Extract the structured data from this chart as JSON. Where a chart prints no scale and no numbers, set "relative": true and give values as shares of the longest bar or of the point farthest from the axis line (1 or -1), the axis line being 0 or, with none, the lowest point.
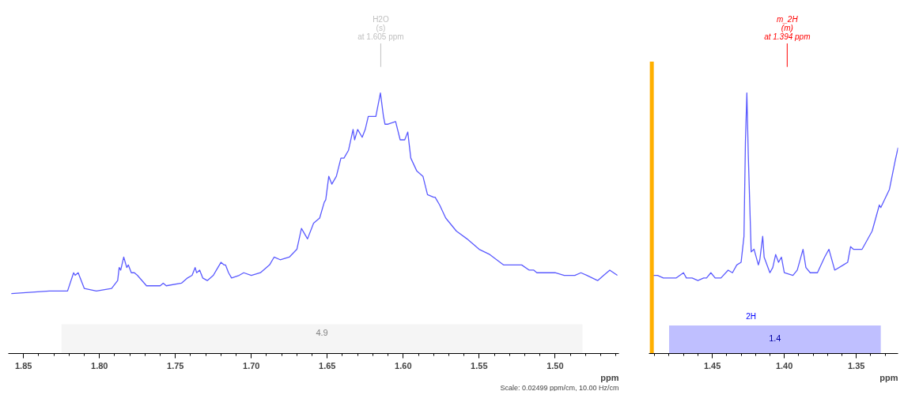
{
  "chart_data": [
    {
      "type": "line",
      "relative": true,
      "color": "#5a5aff",
      "xlabel": "ppm",
      "xlim": [
        1.86,
        1.458
      ],
      "xticks": [
        {
          "value": 1.85,
          "label": "1.85"
        },
        {
          "value": 1.8,
          "label": "1.80"
        },
        {
          "value": 1.75,
          "label": "1.75"
        },
        {
          "value": 1.7,
          "label": "1.70"
        },
        {
          "value": 1.65,
          "label": "1.65"
        },
        {
          "value": 1.6,
          "label": "1.60"
        },
        {
          "value": 1.55,
          "label": "1.55"
        },
        {
          "value": 1.5,
          "label": "1.50"
        }
      ],
      "x": [
        1.858,
        1.833,
        1.829,
        1.826,
        1.821,
        1.817,
        1.816,
        1.814,
        1.81,
        1.802,
        1.792,
        1.788,
        1.787,
        1.786,
        1.784,
        1.782,
        1.781,
        1.779,
        1.777,
        1.775,
        1.769,
        1.76,
        1.758,
        1.756,
        1.746,
        1.742,
        1.739,
        1.737,
        1.736,
        1.734,
        1.732,
        1.729,
        1.725,
        1.723,
        1.72,
        1.718,
        1.717,
        1.715,
        1.713,
        1.708,
        1.705,
        1.7,
        1.694,
        1.688,
        1.685,
        1.681,
        1.675,
        1.67,
        1.667,
        1.663,
        1.659,
        1.655,
        1.652,
        1.651,
        1.649,
        1.647,
        1.644,
        1.641,
        1.639,
        1.636,
        1.633,
        1.632,
        1.63,
        1.627,
        1.625,
        1.623,
        1.62,
        1.618,
        1.615,
        1.613,
        1.612,
        1.61,
        1.605,
        1.602,
        1.599,
        1.597,
        1.595,
        1.591,
        1.587,
        1.584,
        1.58,
        1.579,
        1.576,
        1.572,
        1.565,
        1.558,
        1.55,
        1.543,
        1.534,
        1.53,
        1.522,
        1.517,
        1.514,
        1.512,
        1.5,
        1.494,
        1.487,
        1.483,
        1.479,
        1.472,
        1.468,
        1.464,
        1.459
      ],
      "values": [
        0.23,
        0.24,
        0.24,
        0.24,
        0.24,
        0.31,
        0.3,
        0.31,
        0.25,
        0.24,
        0.25,
        0.28,
        0.33,
        0.32,
        0.37,
        0.33,
        0.34,
        0.31,
        0.31,
        0.3,
        0.26,
        0.26,
        0.27,
        0.26,
        0.27,
        0.29,
        0.3,
        0.33,
        0.31,
        0.32,
        0.29,
        0.28,
        0.3,
        0.32,
        0.35,
        0.34,
        0.34,
        0.31,
        0.29,
        0.3,
        0.31,
        0.3,
        0.31,
        0.34,
        0.37,
        0.36,
        0.37,
        0.4,
        0.48,
        0.44,
        0.5,
        0.52,
        0.58,
        0.59,
        0.68,
        0.65,
        0.68,
        0.75,
        0.75,
        0.78,
        0.86,
        0.82,
        0.86,
        0.83,
        0.86,
        0.91,
        0.91,
        0.91,
        1,
        0.91,
        0.88,
        0.88,
        0.89,
        0.82,
        0.82,
        0.85,
        0.75,
        0.7,
        0.68,
        0.61,
        0.6,
        0.6,
        0.57,
        0.52,
        0.47,
        0.44,
        0.4,
        0.38,
        0.34,
        0.34,
        0.34,
        0.32,
        0.32,
        0.31,
        0.31,
        0.3,
        0.3,
        0.31,
        0.3,
        0.28,
        0.3,
        0.32,
        0.3
      ],
      "bands": [
        {
          "axis": "x",
          "from": 1.825,
          "to": 1.482,
          "label": "4.9",
          "color": "#c8c8c8"
        }
      ],
      "annotations": [
        "H2O\n(s)\nat 1.605 ppm",
        "Scale: 0.02499 ppm/cm, 10.00 Hz/cm"
      ]
    },
    {
      "type": "line",
      "relative": true,
      "color": "#5a5aff",
      "xlabel": "ppm",
      "xlim": [
        1.494,
        1.321
      ],
      "xticks": [
        {
          "value": 1.45,
          "label": "1.45"
        },
        {
          "value": 1.4,
          "label": "1.40"
        },
        {
          "value": 1.35,
          "label": "1.35"
        }
      ],
      "x": [
        1.492,
        1.488,
        1.484,
        1.475,
        1.47,
        1.468,
        1.464,
        1.46,
        1.456,
        1.454,
        1.451,
        1.448,
        1.444,
        1.439,
        1.436,
        1.433,
        1.43,
        1.428,
        1.427,
        1.426,
        1.425,
        1.423,
        1.421,
        1.418,
        1.417,
        1.415,
        1.414,
        1.41,
        1.408,
        1.406,
        1.404,
        1.402,
        1.4,
        1.394,
        1.391,
        1.387,
        1.385,
        1.382,
        1.377,
        1.372,
        1.369,
        1.365,
        1.359,
        1.356,
        1.354,
        1.352,
        1.35,
        1.346,
        1.344,
        1.339,
        1.334,
        1.333,
        1.327,
        1.323,
        1.321
      ],
      "values": [
        0.3,
        0.3,
        0.29,
        0.29,
        0.31,
        0.29,
        0.29,
        0.28,
        0.29,
        0.29,
        0.31,
        0.29,
        0.29,
        0.32,
        0.31,
        0.34,
        0.35,
        0.45,
        0.81,
        1,
        0.76,
        0.39,
        0.4,
        0.34,
        0.36,
        0.45,
        0.37,
        0.31,
        0.33,
        0.38,
        0.35,
        0.37,
        0.31,
        0.3,
        0.32,
        0.4,
        0.33,
        0.31,
        0.31,
        0.37,
        0.4,
        0.32,
        0.34,
        0.35,
        0.41,
        0.4,
        0.4,
        0.4,
        0.42,
        0.47,
        0.57,
        0.56,
        0.63,
        0.74,
        0.79
      ],
      "ref_lines": [
        {
          "axis": "x",
          "value": 1.492,
          "color": "#ffb000"
        }
      ],
      "bands": [
        {
          "axis": "x",
          "from": 1.48,
          "to": 1.333,
          "label": "1.4",
          "color": "#0000ff"
        }
      ],
      "annotations": [
        "m_2H\n(m)\nat 1.394 ppm",
        "2H"
      ]
    }
  ]
}
